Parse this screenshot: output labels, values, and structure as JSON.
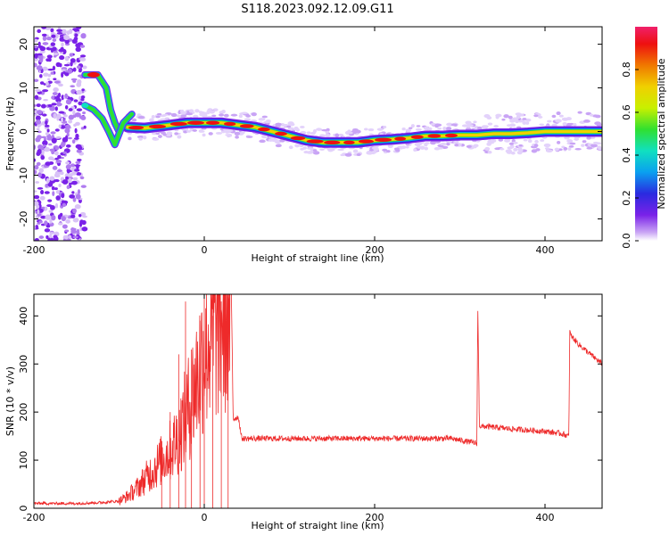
{
  "title": "S118.2023.092.12.09.G11",
  "chart_data": [
    {
      "type": "heatmap",
      "xlabel": "Height of straight line (km)",
      "ylabel": "Frequency (Hz)",
      "xlim": [
        -200,
        467
      ],
      "ylim": [
        -25,
        24
      ],
      "xticks": [
        -200,
        0,
        200,
        400
      ],
      "yticks": [
        20,
        10,
        0,
        -10,
        -20
      ],
      "grid": false,
      "colorbar": {
        "label": "Normalized spectral amplitude",
        "range": [
          0,
          1
        ],
        "ticks": [
          0.0,
          0.2,
          0.4,
          0.6,
          0.8
        ],
        "colormap": [
          "#ffffff",
          "#c9a4f5",
          "#7a22e8",
          "#2a2ae0",
          "#0aa0f0",
          "#10e0c0",
          "#30e030",
          "#c8f000",
          "#f0d000",
          "#f07800",
          "#ee1010",
          "#f0206a"
        ]
      },
      "ridge_x": [
        -90,
        -70,
        -40,
        -20,
        0,
        20,
        40,
        60,
        80,
        100,
        120,
        140,
        160,
        180,
        200,
        220,
        240,
        260,
        280,
        300,
        320,
        340,
        360,
        380,
        400,
        420,
        440,
        467
      ],
      "ridge_freq": [
        1.0,
        0.8,
        1.5,
        2.0,
        2.0,
        2.0,
        1.5,
        1.0,
        0.0,
        -1.0,
        -2.0,
        -2.5,
        -2.5,
        -2.5,
        -2.0,
        -1.8,
        -1.5,
        -1.0,
        -1.0,
        -0.8,
        -0.8,
        -0.5,
        -0.5,
        -0.3,
        0.0,
        0.0,
        0.0,
        0.0
      ],
      "upper_branch_x": [
        -140,
        -125,
        -115,
        -110,
        -105,
        -100
      ],
      "upper_branch_freq": [
        13,
        13,
        10,
        5,
        2,
        0
      ],
      "lower_branch_x": [
        -140,
        -130,
        -120,
        -112,
        -105,
        -95,
        -85
      ],
      "lower_branch_freq": [
        6,
        5,
        3,
        0,
        -3,
        2,
        4
      ],
      "noise_region_x": [
        -200,
        -140
      ]
    },
    {
      "type": "line",
      "xlabel": "Height of straight line (km)",
      "ylabel": "SNR (10 * v/v)",
      "xlim": [
        -200,
        467
      ],
      "ylim": [
        0,
        445
      ],
      "xticks": [
        -200,
        0,
        200,
        400
      ],
      "yticks": [
        0,
        100,
        200,
        300,
        400
      ],
      "grid": false,
      "line_color": "#ee2a2a",
      "x": [
        -200,
        -150,
        -120,
        -100,
        -90,
        -80,
        -70,
        -60,
        -50,
        -40,
        -30,
        -20,
        -10,
        0,
        10,
        20,
        32,
        34,
        40,
        44,
        60,
        100,
        150,
        200,
        250,
        290,
        320,
        321,
        322,
        323,
        324,
        330,
        360,
        400,
        420,
        428,
        429,
        430,
        440,
        450,
        467
      ],
      "y": [
        10,
        10,
        12,
        15,
        25,
        40,
        60,
        80,
        100,
        120,
        150,
        200,
        260,
        330,
        370,
        400,
        420,
        185,
        190,
        145,
        145,
        145,
        145,
        145,
        145,
        145,
        135,
        420,
        300,
        175,
        170,
        170,
        165,
        160,
        155,
        150,
        370,
        360,
        340,
        325,
        300
      ],
      "spikes_x": [
        -50,
        -40,
        -30,
        -22,
        -15,
        -5,
        0,
        10,
        20,
        28
      ],
      "spikes_y": [
        140,
        200,
        320,
        430,
        330,
        390,
        445,
        400,
        430,
        430
      ]
    }
  ]
}
